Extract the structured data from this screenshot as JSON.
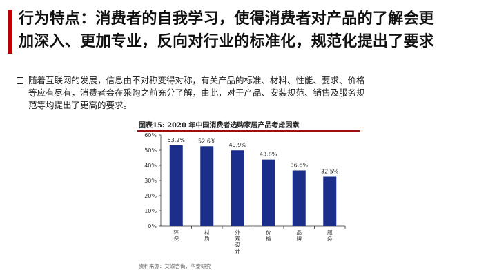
{
  "slide": {
    "headline_line1": "行为特点：消费者的自我学习，使得消费者对产品的了解会更",
    "headline_line2": "加深入、更加专业，反向对行业的标准化，规范化提出了要求",
    "bullet_line1": "随着互联网的发展，信息由不对称变得对称，有关产品的标准、材料、性能、要求、价格",
    "bullet_line2": "等应有尽有，消费者会在采购之前充分了解，由此，对于产品、安装规范、销售及服务规",
    "bullet_line3": "范等均提出了更高的要求。",
    "source": "资料来源：艾媒咨询，华泰研究",
    "accent_color": "#c00000"
  },
  "chart_data": {
    "type": "bar",
    "title": "图表15:   2020 年中国消费者选购家居产品考虑因素",
    "categories": [
      "环保",
      "材质",
      "外观设计",
      "价格",
      "品牌",
      "服务"
    ],
    "values": [
      53.2,
      52.6,
      49.9,
      43.8,
      36.6,
      32.5
    ],
    "value_labels": [
      "53.2%",
      "52.6%",
      "49.9%",
      "43.8%",
      "36.6%",
      "32.5%"
    ],
    "yticks": [
      "0%",
      "10%",
      "20%",
      "30%",
      "40%",
      "50%",
      "60%"
    ],
    "ylim": [
      0,
      60
    ],
    "bar_color": "#1a2e8a",
    "grid": false,
    "xlabel": "",
    "ylabel": ""
  }
}
